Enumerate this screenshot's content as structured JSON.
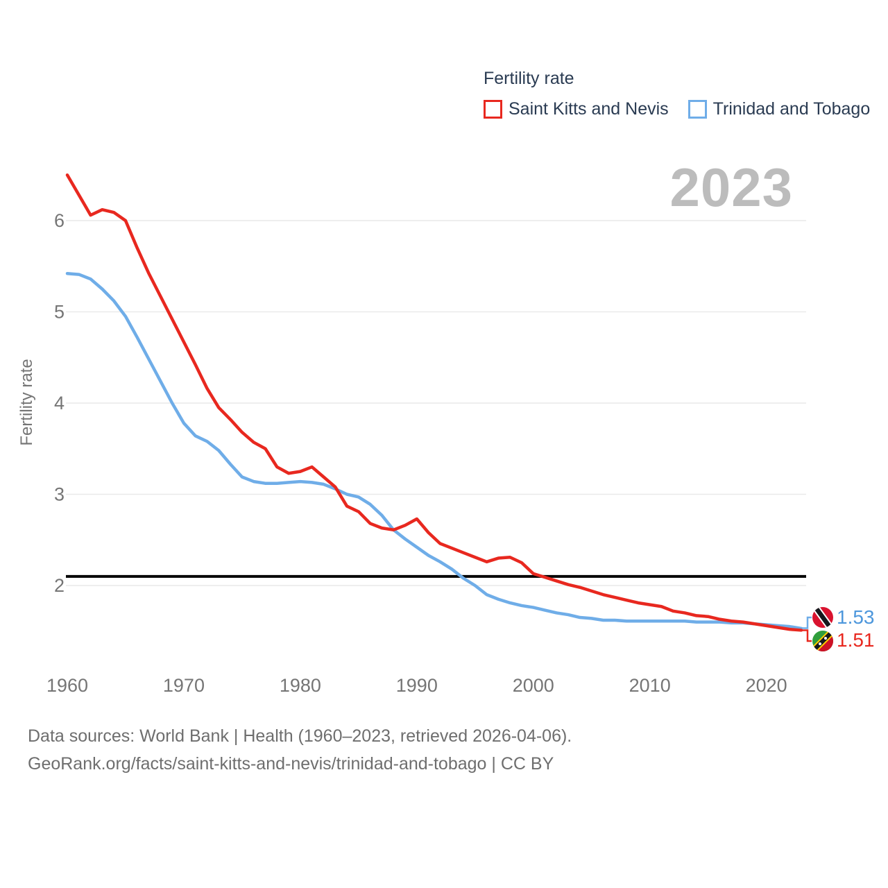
{
  "legend": {
    "title": "Fertility rate",
    "items": [
      {
        "label": "Saint Kitts and Nevis",
        "color": "#e8281f"
      },
      {
        "label": "Trinidad and Tobago",
        "color": "#6fade8"
      }
    ]
  },
  "watermark": "2023",
  "footer": {
    "line1": "Data sources: World Bank | Health (1960–2023, retrieved 2026-04-06).",
    "line2": "GeoRank.org/facts/saint-kitts-and-nevis/trinidad-and-tobago | CC BY"
  },
  "chart_data": {
    "type": "line",
    "title": "Fertility rate",
    "ylabel": "Fertility rate",
    "x_range": [
      1960,
      2023
    ],
    "x_ticks": [
      1960,
      1970,
      1980,
      1990,
      2000,
      2010,
      2020
    ],
    "y_ticks": [
      2,
      3,
      4,
      5,
      6
    ],
    "ylim": [
      1.4,
      6.6
    ],
    "grid": "horizontal",
    "legend_position": "top",
    "reference_line": {
      "value": 2.1,
      "color": "#000000"
    },
    "series": [
      {
        "name": "Saint Kitts and Nevis",
        "color": "#e8281f",
        "label_color": "#e8281f",
        "end_label": "1.51",
        "flag": "saint-kitts-and-nevis",
        "values": [
          6.5,
          6.28,
          6.06,
          6.12,
          6.09,
          6.0,
          5.7,
          5.42,
          5.17,
          4.92,
          4.67,
          4.42,
          4.16,
          3.95,
          3.82,
          3.68,
          3.57,
          3.5,
          3.3,
          3.23,
          3.25,
          3.3,
          3.19,
          3.08,
          2.87,
          2.81,
          2.68,
          2.63,
          2.61,
          2.66,
          2.73,
          2.58,
          2.46,
          2.41,
          2.36,
          2.31,
          2.26,
          2.3,
          2.31,
          2.25,
          2.13,
          2.09,
          2.05,
          2.01,
          1.98,
          1.94,
          1.9,
          1.87,
          1.84,
          1.81,
          1.79,
          1.77,
          1.72,
          1.7,
          1.67,
          1.66,
          1.63,
          1.61,
          1.6,
          1.58,
          1.56,
          1.54,
          1.52,
          1.51
        ]
      },
      {
        "name": "Trinidad and Tobago",
        "color": "#6fade8",
        "label_color": "#4d97dc",
        "end_label": "1.53",
        "flag": "trinidad-and-tobago",
        "values": [
          5.42,
          5.41,
          5.36,
          5.25,
          5.12,
          4.95,
          4.72,
          4.48,
          4.24,
          4.0,
          3.78,
          3.64,
          3.58,
          3.48,
          3.33,
          3.19,
          3.14,
          3.12,
          3.12,
          3.13,
          3.14,
          3.13,
          3.11,
          3.06,
          3.0,
          2.97,
          2.89,
          2.77,
          2.61,
          2.51,
          2.42,
          2.33,
          2.26,
          2.18,
          2.08,
          2.0,
          1.9,
          1.85,
          1.81,
          1.78,
          1.76,
          1.73,
          1.7,
          1.68,
          1.65,
          1.64,
          1.62,
          1.62,
          1.61,
          1.61,
          1.61,
          1.61,
          1.61,
          1.61,
          1.6,
          1.6,
          1.6,
          1.59,
          1.59,
          1.58,
          1.57,
          1.56,
          1.55,
          1.53
        ]
      }
    ]
  }
}
